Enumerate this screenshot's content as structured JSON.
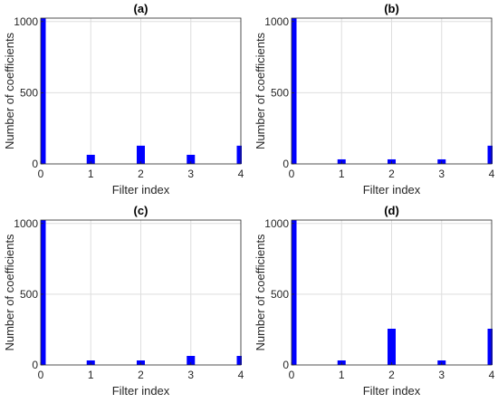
{
  "chart_data": [
    {
      "type": "bar",
      "title": "(a)",
      "xlabel": "Filter index",
      "ylabel": "Number of coefficients",
      "categories": [
        "0",
        "1",
        "2",
        "3",
        "4"
      ],
      "values": [
        1024,
        64,
        128,
        64,
        128
      ],
      "ylim": [
        0,
        1024
      ],
      "yticks": [
        "0",
        "500",
        "1000"
      ],
      "grid": true,
      "color": "#0000ff"
    },
    {
      "type": "bar",
      "title": "(b)",
      "xlabel": "Filter index",
      "ylabel": "Number of coefficients",
      "categories": [
        "0",
        "1",
        "2",
        "3",
        "4"
      ],
      "values": [
        1024,
        32,
        32,
        32,
        128
      ],
      "ylim": [
        0,
        1024
      ],
      "yticks": [
        "0",
        "500",
        "1000"
      ],
      "grid": true,
      "color": "#0000ff"
    },
    {
      "type": "bar",
      "title": "(c)",
      "xlabel": "Filter index",
      "ylabel": "Number of coefficients",
      "categories": [
        "0",
        "1",
        "2",
        "3",
        "4"
      ],
      "values": [
        1024,
        32,
        32,
        64,
        64
      ],
      "ylim": [
        0,
        1024
      ],
      "yticks": [
        "0",
        "500",
        "1000"
      ],
      "grid": true,
      "color": "#0000ff"
    },
    {
      "type": "bar",
      "title": "(d)",
      "xlabel": "Filter index",
      "ylabel": "Number of coefficients",
      "categories": [
        "0",
        "1",
        "2",
        "3",
        "4"
      ],
      "values": [
        1024,
        32,
        256,
        32,
        256
      ],
      "ylim": [
        0,
        1024
      ],
      "yticks": [
        "0",
        "500",
        "1000"
      ],
      "grid": true,
      "color": "#0000ff"
    }
  ]
}
